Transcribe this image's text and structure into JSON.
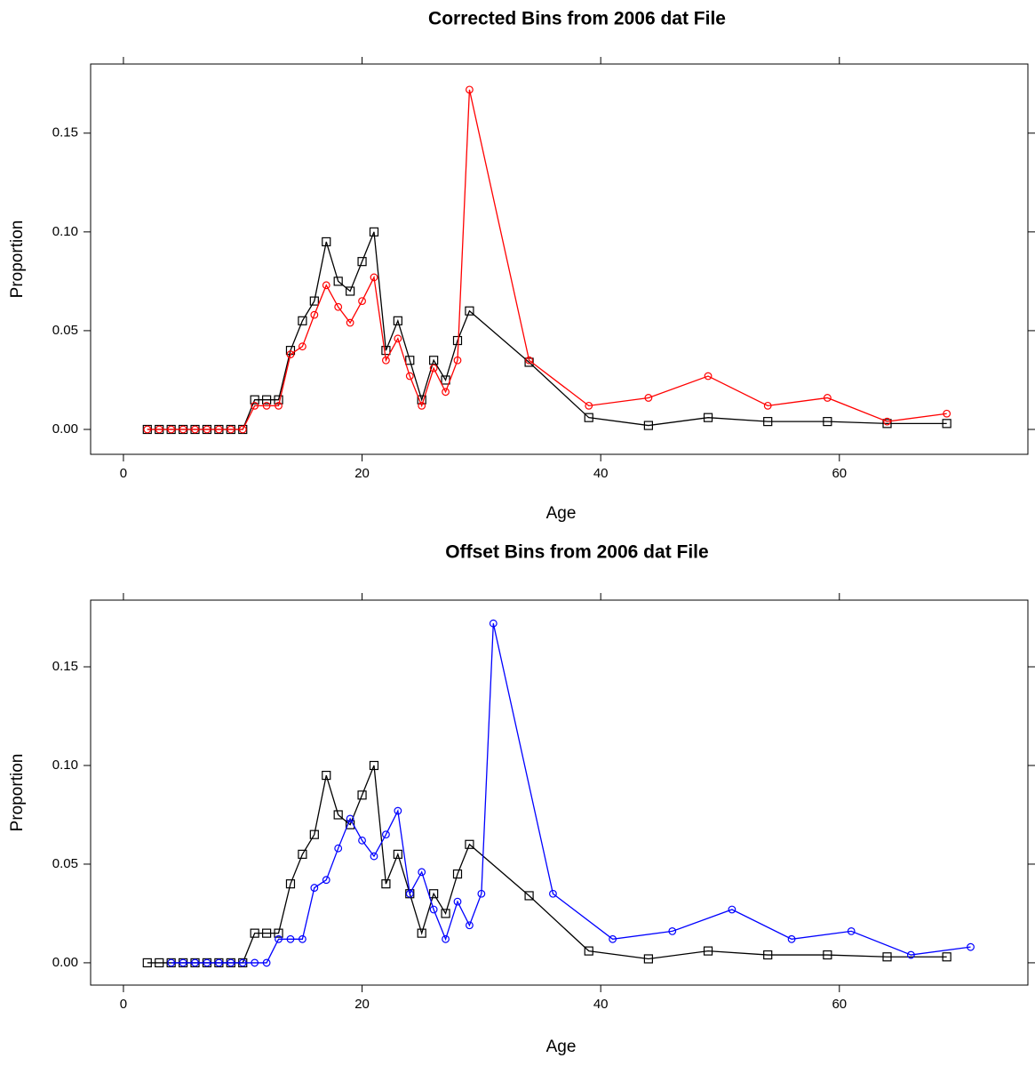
{
  "chart_data": [
    {
      "type": "line",
      "title": "Corrected Bins from 2006 dat File",
      "xlabel": "Age",
      "ylabel": "Proportion",
      "xlim": [
        -2.75,
        75.8
      ],
      "ylim": [
        -0.0126,
        0.185
      ],
      "xticks": [
        0,
        20,
        40,
        60
      ],
      "yticks": [
        {
          "value": 0,
          "label": "0.00"
        },
        {
          "value": 0.05,
          "label": "0.05"
        },
        {
          "value": 0.1,
          "label": "0.10"
        },
        {
          "value": 0.15,
          "label": "0.15"
        }
      ],
      "series": [
        {
          "color": "#000000",
          "marker": "square",
          "x": [
            2,
            3,
            4,
            5,
            6,
            7,
            8,
            9,
            10,
            11,
            12,
            13,
            14,
            15,
            16,
            17,
            18,
            19,
            20,
            21,
            22,
            23,
            24,
            25,
            26,
            27,
            28,
            29,
            34,
            39,
            44,
            49,
            54,
            59,
            64,
            69
          ],
          "values": [
            0,
            0,
            0,
            0,
            0,
            0,
            0,
            0,
            0,
            0.015,
            0.015,
            0.015,
            0.04,
            0.055,
            0.065,
            0.095,
            0.075,
            0.07,
            0.085,
            0.1,
            0.04,
            0.055,
            0.035,
            0.015,
            0.035,
            0.025,
            0.045,
            0.06,
            0.034,
            0.006,
            0.002,
            0.006,
            0.004,
            0.004,
            0.003,
            0.003
          ]
        },
        {
          "color": "#ff0000",
          "marker": "circle",
          "x": [
            2,
            3,
            4,
            5,
            6,
            7,
            8,
            9,
            10,
            11,
            12,
            13,
            14,
            15,
            16,
            17,
            18,
            19,
            20,
            21,
            22,
            23,
            24,
            25,
            26,
            27,
            28,
            29,
            34,
            39,
            44,
            49,
            54,
            59,
            64,
            69
          ],
          "values": [
            0,
            0,
            0,
            0,
            0,
            0,
            0,
            0,
            0,
            0.012,
            0.012,
            0.012,
            0.038,
            0.042,
            0.058,
            0.073,
            0.062,
            0.054,
            0.065,
            0.077,
            0.035,
            0.046,
            0.027,
            0.012,
            0.031,
            0.019,
            0.035,
            0.172,
            0.035,
            0.012,
            0.016,
            0.027,
            0.012,
            0.016,
            0.004,
            0.008
          ]
        }
      ]
    },
    {
      "type": "line",
      "title": "Offset Bins from 2006 dat File",
      "xlabel": "Age",
      "ylabel": "Proportion",
      "xlim": [
        -2.75,
        75.8
      ],
      "ylim": [
        -0.0113,
        0.1838
      ],
      "xticks": [
        0,
        20,
        40,
        60
      ],
      "yticks": [
        {
          "value": 0,
          "label": "0.00"
        },
        {
          "value": 0.05,
          "label": "0.05"
        },
        {
          "value": 0.1,
          "label": "0.10"
        },
        {
          "value": 0.15,
          "label": "0.15"
        }
      ],
      "series": [
        {
          "color": "#000000",
          "marker": "square",
          "x": [
            2,
            3,
            4,
            5,
            6,
            7,
            8,
            9,
            10,
            11,
            12,
            13,
            14,
            15,
            16,
            17,
            18,
            19,
            20,
            21,
            22,
            23,
            24,
            25,
            26,
            27,
            28,
            29,
            34,
            39,
            44,
            49,
            54,
            59,
            64,
            69
          ],
          "values": [
            0,
            0,
            0,
            0,
            0,
            0,
            0,
            0,
            0,
            0.015,
            0.015,
            0.015,
            0.04,
            0.055,
            0.065,
            0.095,
            0.075,
            0.07,
            0.085,
            0.1,
            0.04,
            0.055,
            0.035,
            0.015,
            0.035,
            0.025,
            0.045,
            0.06,
            0.034,
            0.006,
            0.002,
            0.006,
            0.004,
            0.004,
            0.003,
            0.003
          ]
        },
        {
          "color": "#0000ff",
          "marker": "circle",
          "x": [
            4,
            5,
            6,
            7,
            8,
            9,
            10,
            11,
            12,
            13,
            14,
            15,
            16,
            17,
            18,
            19,
            20,
            21,
            22,
            23,
            24,
            25,
            26,
            27,
            28,
            29,
            30,
            31,
            36,
            41,
            46,
            51,
            56,
            61,
            66,
            71
          ],
          "values": [
            0,
            0,
            0,
            0,
            0,
            0,
            0,
            0,
            0,
            0.012,
            0.012,
            0.012,
            0.038,
            0.042,
            0.058,
            0.073,
            0.062,
            0.054,
            0.065,
            0.077,
            0.035,
            0.046,
            0.027,
            0.012,
            0.031,
            0.019,
            0.035,
            0.172,
            0.035,
            0.012,
            0.016,
            0.027,
            0.012,
            0.016,
            0.004,
            0.008
          ]
        }
      ]
    }
  ]
}
